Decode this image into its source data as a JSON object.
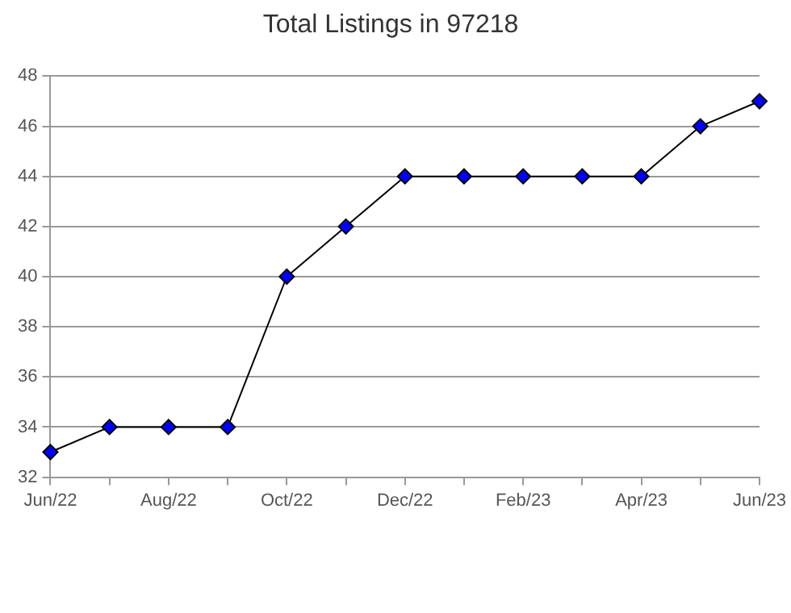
{
  "chart_data": {
    "type": "line",
    "title": "Total Listings in 97218",
    "categories": [
      "Jun/22",
      null,
      "Aug/22",
      null,
      "Oct/22",
      null,
      "Dec/22",
      null,
      "Feb/23",
      null,
      "Apr/23",
      null,
      "Jun/23"
    ],
    "series": [
      {
        "color": "#0000ff",
        "values": [
          33,
          34,
          34,
          34,
          40,
          42,
          44,
          44,
          44,
          44,
          44,
          46,
          47
        ]
      }
    ],
    "ylim": [
      32,
      48
    ],
    "yticks": [
      32,
      34,
      36,
      38,
      40,
      42,
      44,
      46,
      48
    ],
    "grid": "y",
    "legend": false,
    "marker": "diamond",
    "line_style": "solid"
  }
}
